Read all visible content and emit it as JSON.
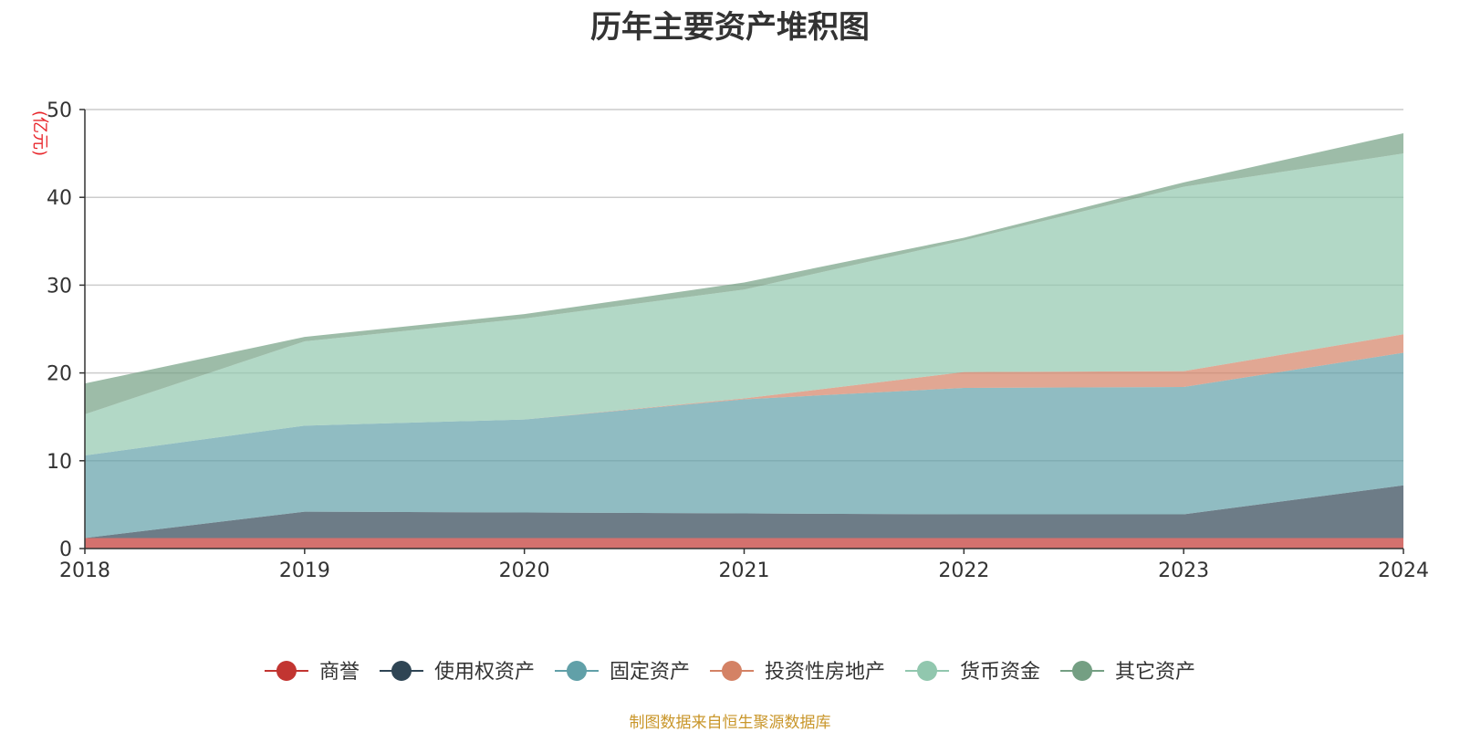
{
  "chart_data": {
    "type": "area",
    "stacked": true,
    "title": "历年主要资产堆积图",
    "ylabel": "(亿元)",
    "xlabel": "",
    "x": [
      "2018",
      "2019",
      "2020",
      "2021",
      "2022",
      "2023",
      "2024"
    ],
    "ylim": [
      0,
      50
    ],
    "yticks": [
      0,
      10,
      20,
      30,
      40,
      50
    ],
    "grid": true,
    "legend_position": "bottom",
    "series": [
      {
        "name": "商誉",
        "color": "#c23531",
        "values": [
          1.2,
          1.2,
          1.2,
          1.2,
          1.2,
          1.2,
          1.2
        ]
      },
      {
        "name": "使用权资产",
        "color": "#2f4554",
        "values": [
          0.0,
          3.0,
          2.9,
          2.8,
          2.7,
          2.7,
          6.0
        ]
      },
      {
        "name": "固定资产",
        "color": "#61a0a8",
        "values": [
          9.4,
          9.8,
          10.6,
          13.0,
          14.4,
          14.5,
          15.1
        ]
      },
      {
        "name": "投资性房地产",
        "color": "#d48265",
        "values": [
          0.0,
          0.0,
          0.0,
          0.1,
          1.8,
          1.8,
          2.1
        ]
      },
      {
        "name": "货币资金",
        "color": "#91c7ae",
        "values": [
          4.7,
          9.6,
          11.5,
          12.4,
          15.0,
          21.0,
          20.6
        ]
      },
      {
        "name": "其它资产",
        "color": "#749f83",
        "values": [
          3.5,
          0.5,
          0.5,
          0.8,
          0.3,
          0.5,
          2.3
        ]
      }
    ]
  },
  "source_note": "制图数据来自恒生聚源数据库"
}
